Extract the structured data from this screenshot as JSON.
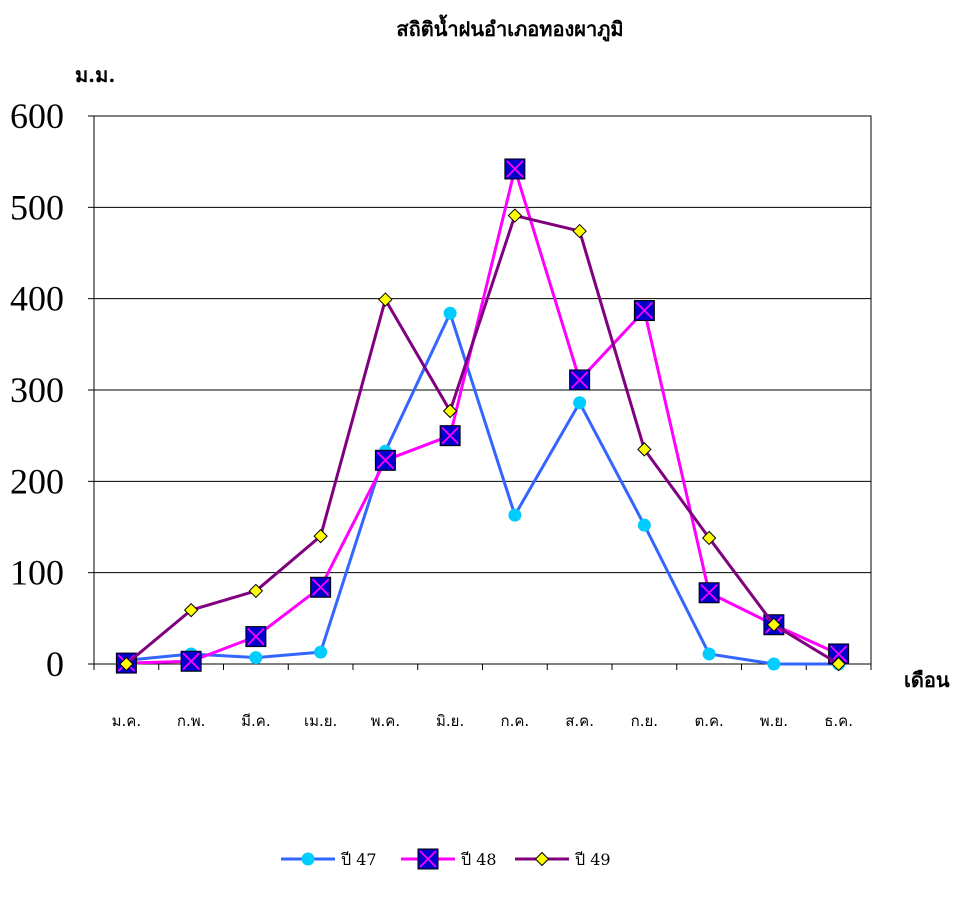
{
  "chart_data": {
    "type": "line",
    "title": "สถิติน้ำฝนอำเภอทองผาภูมิ",
    "ylabel": "ม.ม.",
    "xlabel": "เดือน",
    "ylim": [
      0,
      600
    ],
    "yticks": [
      0,
      100,
      200,
      300,
      400,
      500,
      600
    ],
    "categories": [
      "ม.ค.",
      "ก.พ.",
      "มี.ค.",
      "เม.ย.",
      "พ.ค.",
      "มิ.ย.",
      "ก.ค.",
      "ส.ค.",
      "ก.ย.",
      "ต.ค.",
      "พ.ย.",
      "ธ.ค."
    ],
    "grid": true,
    "legend_position": "bottom",
    "series": [
      {
        "name": "ปี 47",
        "color": "#3366ff",
        "marker": "circle",
        "marker_color": "#00ccff",
        "values": [
          4,
          11,
          7,
          13,
          233,
          384,
          163,
          286,
          152,
          11,
          0,
          0
        ]
      },
      {
        "name": "ปี 48",
        "color": "#ff00ff",
        "marker": "square-x",
        "marker_color": "#0000cc",
        "values": [
          1,
          3,
          30,
          84,
          223,
          250,
          542,
          311,
          387,
          78,
          43,
          11
        ]
      },
      {
        "name": "ปี 49",
        "color": "#800080",
        "marker": "diamond",
        "marker_color": "#ffff00",
        "values": [
          0,
          59,
          80,
          140,
          399,
          277,
          491,
          474,
          235,
          138,
          43,
          0
        ]
      }
    ]
  }
}
